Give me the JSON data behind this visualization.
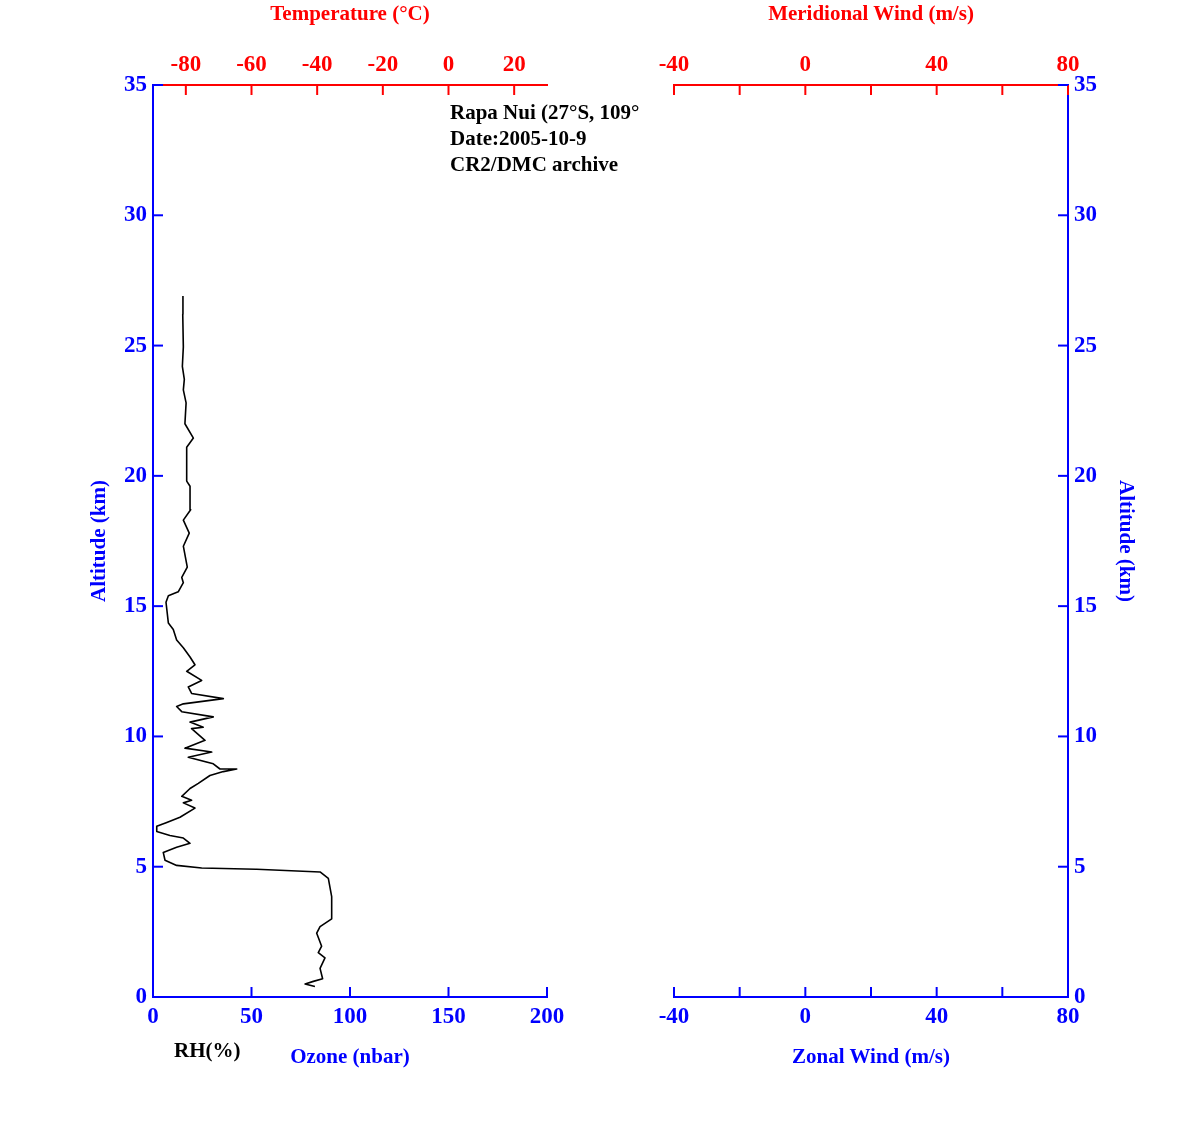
{
  "chart_data": [
    {
      "type": "line",
      "xlabel": "Ozone (nbar)",
      "x2label": "Temperature (°C)",
      "ylabel": "Altitude (km)",
      "xlim": [
        0,
        200
      ],
      "xticks": [
        0,
        50,
        100,
        150,
        200
      ],
      "x2lim": [
        -90,
        30
      ],
      "x2ticks": [
        -80,
        -60,
        -40,
        -20,
        0,
        20
      ],
      "ylim": [
        0,
        35
      ],
      "yticks": [
        0,
        5,
        10,
        15,
        20,
        25,
        30,
        35
      ],
      "grid": false,
      "legend": false,
      "annotations": [
        "Rapa Nui (27°S, 109°",
        "Date:2005-10-9",
        "CR2/DMC archive"
      ],
      "series": [
        {
          "name": "RH(%)",
          "color": "#000000",
          "x": [
            82.2,
            77.2,
            81.4,
            86.1,
            84.8,
            87.3,
            83.9,
            85.6,
            83.1,
            84.8,
            90.7,
            90.7,
            89.0,
            84.8,
            52.6,
            24.7,
            12.0,
            6.1,
            5.2,
            12.0,
            18.8,
            15.4,
            8.6,
            1.9,
            1.9,
            7.0,
            13.7,
            21.3,
            15.4,
            19.6,
            14.6,
            18.8,
            23.0,
            28.9,
            35.7,
            42.5,
            34.0,
            30.6,
            17.9,
            29.8,
            16.2,
            26.4,
            19.6,
            25.5,
            18.8,
            30.6,
            14.6,
            12.0,
            15.4,
            35.7,
            19.6,
            17.9,
            24.7,
            17.1,
            21.3,
            18.8,
            15.4,
            12.0,
            10.3,
            7.8,
            6.6,
            7.8,
            12.8,
            15.4,
            14.6,
            17.4,
            15.4,
            18.4,
            15.4,
            19.1,
            18.8,
            17.1,
            17.1,
            20.5,
            16.2,
            16.8,
            15.4,
            15.9,
            14.9,
            15.4,
            15.1,
            15.2
          ],
          "values": [
            0.4,
            0.5,
            0.6,
            0.7,
            1.1,
            1.5,
            1.7,
            1.95,
            2.45,
            2.7,
            3.0,
            3.85,
            4.55,
            4.8,
            4.9,
            4.95,
            5.05,
            5.25,
            5.55,
            5.75,
            5.9,
            6.1,
            6.2,
            6.35,
            6.55,
            6.7,
            6.9,
            7.25,
            7.45,
            7.55,
            7.7,
            8.0,
            8.2,
            8.5,
            8.65,
            8.75,
            8.75,
            8.95,
            9.2,
            9.4,
            9.55,
            9.85,
            10.3,
            10.35,
            10.55,
            10.75,
            10.95,
            11.15,
            11.25,
            11.45,
            11.65,
            11.9,
            12.15,
            12.5,
            12.75,
            13.05,
            13.4,
            13.7,
            14.1,
            14.35,
            15.15,
            15.4,
            15.55,
            15.9,
            16.1,
            16.5,
            17.3,
            17.8,
            18.3,
            18.7,
            19.6,
            19.8,
            21.1,
            21.45,
            22.0,
            22.8,
            23.3,
            23.7,
            24.2,
            24.95,
            26.2,
            26.9
          ]
        }
      ]
    },
    {
      "type": "line",
      "xlabel": "Zonal Wind (m/s)",
      "x2label": "Meridional Wind (m/s)",
      "y2label": "Altitude (km)",
      "xlim": [
        -40,
        80
      ],
      "xticks": [
        -40,
        {
          "value": -20,
          "label": null
        },
        0,
        {
          "value": 20,
          "label": null
        },
        40,
        {
          "value": 60,
          "label": null
        },
        80
      ],
      "x2lim": [
        -40,
        80
      ],
      "x2ticks": [
        -40,
        {
          "value": -20,
          "label": null
        },
        0,
        {
          "value": 20,
          "label": null
        },
        40,
        {
          "value": 60,
          "label": null
        },
        80
      ],
      "y2lim": [
        0,
        35
      ],
      "y2ticks": [
        0,
        5,
        10,
        15,
        20,
        25,
        30,
        35
      ],
      "grid": false,
      "legend": false
    }
  ]
}
